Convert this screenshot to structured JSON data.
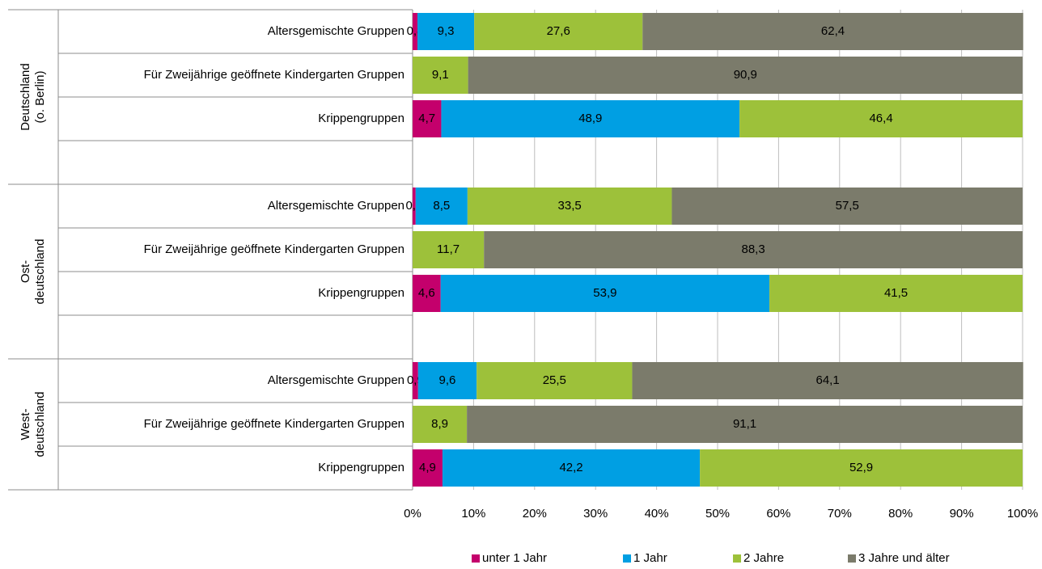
{
  "chart_data": {
    "type": "stacked-bar-horizontal",
    "categories": [
      "Altersgemischte Gruppen",
      "Für Zweijährige  geöffnete Kindergarten Gruppen",
      "Krippengruppen",
      null,
      "Altersgemischte Gruppen",
      "Für Zweijährige  geöffnete Kindergarten Gruppen",
      "Krippengruppen",
      null,
      "Altersgemischte Gruppen",
      "Für Zweijährige  geöffnete Kindergarten Gruppen",
      "Krippengruppen"
    ],
    "groups": [
      {
        "lines": [
          "Deutschland",
          "(o. Berlin)"
        ]
      },
      {
        "lines": [
          "Ost-",
          "deutschland"
        ]
      },
      {
        "lines": [
          "West-",
          "deutschland"
        ]
      }
    ],
    "series": [
      {
        "name": "unter 1 Jahr",
        "color": "#c4006c",
        "values": [
          0.8,
          null,
          4.7,
          null,
          0.5,
          null,
          4.6,
          null,
          0.9,
          null,
          4.9
        ],
        "value_labels": [
          "0,8",
          null,
          "4,7",
          null,
          "0,5",
          null,
          "4,6",
          null,
          "0,9",
          null,
          "4,9"
        ]
      },
      {
        "name": "1 Jahr",
        "color": "#009fe3",
        "values": [
          9.3,
          null,
          48.9,
          null,
          8.5,
          null,
          53.9,
          null,
          9.6,
          null,
          42.2
        ],
        "value_labels": [
          "9,3",
          null,
          "48,9",
          null,
          "8,5",
          null,
          "53,9",
          null,
          "9,6",
          null,
          "42,2"
        ]
      },
      {
        "name": "2 Jahre",
        "color": "#9dc13a",
        "values": [
          27.6,
          9.1,
          46.4,
          null,
          33.5,
          11.7,
          41.5,
          null,
          25.5,
          8.9,
          52.9
        ],
        "value_labels": [
          "27,6",
          "9,1",
          "46,4",
          null,
          "33,5",
          "11,7",
          "41,5",
          null,
          "25,5",
          "8,9",
          "52,9"
        ]
      },
      {
        "name": "3 Jahre und älter",
        "color": "#7b7b6b",
        "values": [
          62.4,
          90.9,
          null,
          null,
          57.5,
          88.3,
          null,
          null,
          64.1,
          91.1,
          null
        ],
        "value_labels": [
          "62,4",
          "90,9",
          null,
          null,
          "57,5",
          "88,3",
          null,
          null,
          "64,1",
          "91,1",
          null
        ]
      }
    ],
    "xlim": [
      0,
      100
    ],
    "xticks": [
      {
        "value": 0,
        "label": "0%"
      },
      {
        "value": 10,
        "label": "10%"
      },
      {
        "value": 20,
        "label": "20%"
      },
      {
        "value": 30,
        "label": "30%"
      },
      {
        "value": 40,
        "label": "40%"
      },
      {
        "value": 50,
        "label": "50%"
      },
      {
        "value": 60,
        "label": "60%"
      },
      {
        "value": 70,
        "label": "70%"
      },
      {
        "value": 80,
        "label": "80%"
      },
      {
        "value": 90,
        "label": "90%"
      },
      {
        "value": 100,
        "label": "100%"
      }
    ],
    "grid": true,
    "legend": "bottom"
  }
}
